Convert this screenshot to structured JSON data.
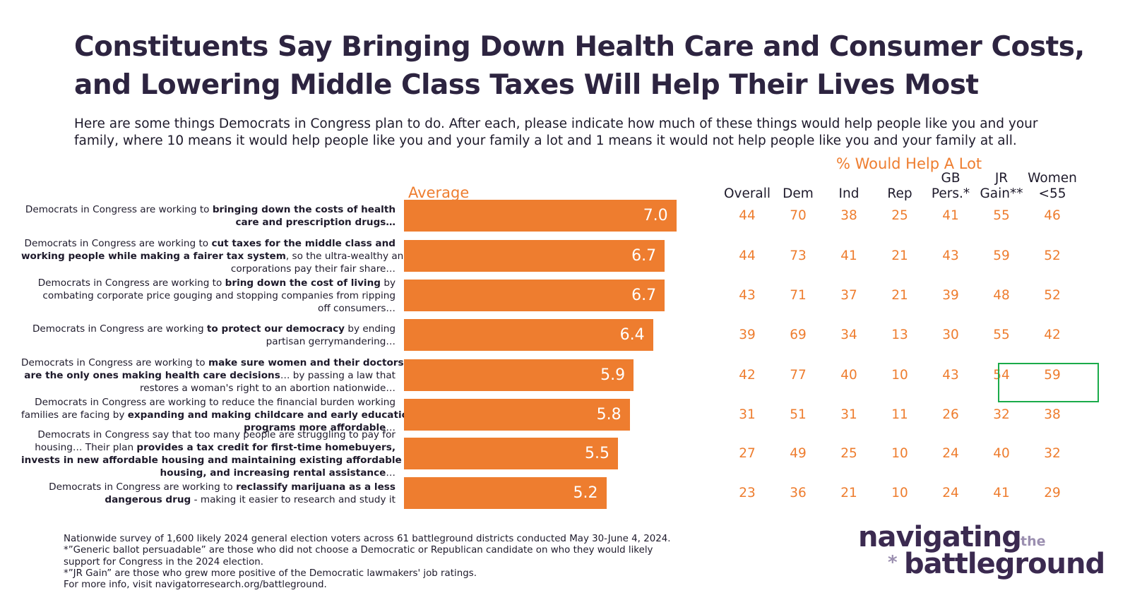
{
  "title": {
    "line1": "Constituents Say Bringing Down Health Care and Consumer Costs,",
    "line2": "and Lowering Middle Class Taxes Will Help Their Lives Most"
  },
  "subtitle": {
    "line1": "Here are some things Democrats in Congress plan to do. After each, please indicate how much of these things would help people like you and your",
    "line2": "family, where 10 means it would help people like you and your family a lot and 1 means it would not help people like you and your family at all."
  },
  "average_label": "Average",
  "percent_label": "% Would Help A Lot",
  "columns": [
    {
      "line1": "",
      "line2": "Overall"
    },
    {
      "line1": "",
      "line2": "Dem"
    },
    {
      "line1": "",
      "line2": "Ind"
    },
    {
      "line1": "",
      "line2": "Rep"
    },
    {
      "line1": "GB",
      "line2": "Pers.*"
    },
    {
      "line1": "JR",
      "line2": "Gain**"
    },
    {
      "line1": "Women",
      "line2": "<55"
    }
  ],
  "items": [
    {
      "lines": [
        [
          {
            "t": "Democrats in Congress are working to ",
            "b": false
          },
          {
            "t": "bringing down the costs of health",
            "b": true
          }
        ],
        [
          {
            "t": "care and prescription drugs…",
            "b": true
          }
        ]
      ]
    },
    {
      "lines": [
        [
          {
            "t": "Democrats in Congress are working to ",
            "b": false
          },
          {
            "t": "cut taxes for the middle class and",
            "b": true
          }
        ],
        [
          {
            "t": "working people while making a fairer tax system",
            "b": true
          },
          {
            "t": ", so the ultra-wealthy and",
            "b": false
          }
        ],
        [
          {
            "t": "corporations pay their fair share…",
            "b": false
          }
        ]
      ]
    },
    {
      "lines": [
        [
          {
            "t": "Democrats in Congress are working to ",
            "b": false
          },
          {
            "t": "bring down the cost of living",
            "b": true
          },
          {
            "t": " by",
            "b": false
          }
        ],
        [
          {
            "t": "combating corporate price gouging and stopping companies from ripping",
            "b": false
          }
        ],
        [
          {
            "t": "off consumers…",
            "b": false
          }
        ]
      ]
    },
    {
      "lines": [
        [
          {
            "t": "Democrats in Congress are working ",
            "b": false
          },
          {
            "t": "to protect our democracy",
            "b": true
          },
          {
            "t": " by ending",
            "b": false
          }
        ],
        [
          {
            "t": "partisan gerrymandering…",
            "b": false
          }
        ]
      ]
    },
    {
      "lines": [
        [
          {
            "t": "Democrats in Congress are working to ",
            "b": false
          },
          {
            "t": "make sure women and their doctors",
            "b": true
          }
        ],
        [
          {
            "t": "are the only ones making health care decisions",
            "b": true
          },
          {
            "t": "… by passing a law that",
            "b": false
          }
        ],
        [
          {
            "t": "restores a woman's right to an abortion nationwide…",
            "b": false
          }
        ]
      ]
    },
    {
      "lines": [
        [
          {
            "t": "Democrats in Congress are working to reduce the financial burden working",
            "b": false
          }
        ],
        [
          {
            "t": "families are facing by ",
            "b": false
          },
          {
            "t": "expanding and making childcare and early education",
            "b": true
          }
        ],
        [
          {
            "t": "programs more affordable",
            "b": true
          },
          {
            "t": "…",
            "b": false
          }
        ]
      ]
    },
    {
      "lines": [
        [
          {
            "t": "Democrats in Congress say that too many people are struggling to pay for",
            "b": false
          }
        ],
        [
          {
            "t": "housing… Their plan ",
            "b": false
          },
          {
            "t": "provides a tax credit for first-time homebuyers,",
            "b": true
          }
        ],
        [
          {
            "t": "invests in new affordable housing and maintaining existing affordable",
            "b": true
          }
        ],
        [
          {
            "t": "housing, and increasing rental assistance",
            "b": true
          },
          {
            "t": "…",
            "b": false
          }
        ]
      ]
    },
    {
      "lines": [
        [
          {
            "t": "Democrats in Congress are working to ",
            "b": false
          },
          {
            "t": "reclassify marijuana as a less",
            "b": true
          }
        ],
        [
          {
            "t": "dangerous drug",
            "b": true
          },
          {
            "t": " - making it easier to research and study it",
            "b": false
          }
        ]
      ]
    }
  ],
  "chart_data": {
    "type": "bar",
    "orientation": "horizontal",
    "title": "Average",
    "values": [
      7.0,
      6.7,
      6.7,
      6.4,
      5.9,
      5.8,
      5.5,
      5.2
    ],
    "value_labels": [
      "7.0",
      "6.7",
      "6.7",
      "6.4",
      "5.9",
      "5.8",
      "5.5",
      "5.2"
    ],
    "bar_color": "#ee7d2f",
    "table": {
      "title": "% Would Help A Lot",
      "rows": [
        [
          "44",
          "70",
          "38",
          "25",
          "41",
          "55",
          "46"
        ],
        [
          "44",
          "73",
          "41",
          "21",
          "43",
          "59",
          "52"
        ],
        [
          "43",
          "71",
          "37",
          "21",
          "39",
          "48",
          "52"
        ],
        [
          "39",
          "69",
          "34",
          "13",
          "30",
          "55",
          "42"
        ],
        [
          "42",
          "77",
          "40",
          "10",
          "43",
          "54",
          "59"
        ],
        [
          "31",
          "51",
          "31",
          "11",
          "26",
          "32",
          "38"
        ],
        [
          "27",
          "49",
          "25",
          "10",
          "24",
          "40",
          "32"
        ],
        [
          "23",
          "36",
          "21",
          "10",
          "24",
          "41",
          "29"
        ]
      ],
      "highlight": {
        "row": 4,
        "columns": [
          5,
          6
        ],
        "color": "#1aab4a"
      }
    }
  },
  "footnotes": [
    "Nationwide survey of 1,600 likely 2024 general election voters across 61 battleground districts conducted May 30-June 4, 2024.",
    "*”Generic ballot persuadable” are those who did not choose a Democratic or Republican candidate on who they would likely",
    "support for Congress in the 2024 election.",
    "*”JR Gain” are those who grew more positive of the Democratic lawmakers' job ratings.",
    "For more info, visit navigatorresearch.org/battleground."
  ],
  "logo": {
    "word1": "navigating",
    "word2": "the",
    "star": "*",
    "word3": "battleground"
  }
}
